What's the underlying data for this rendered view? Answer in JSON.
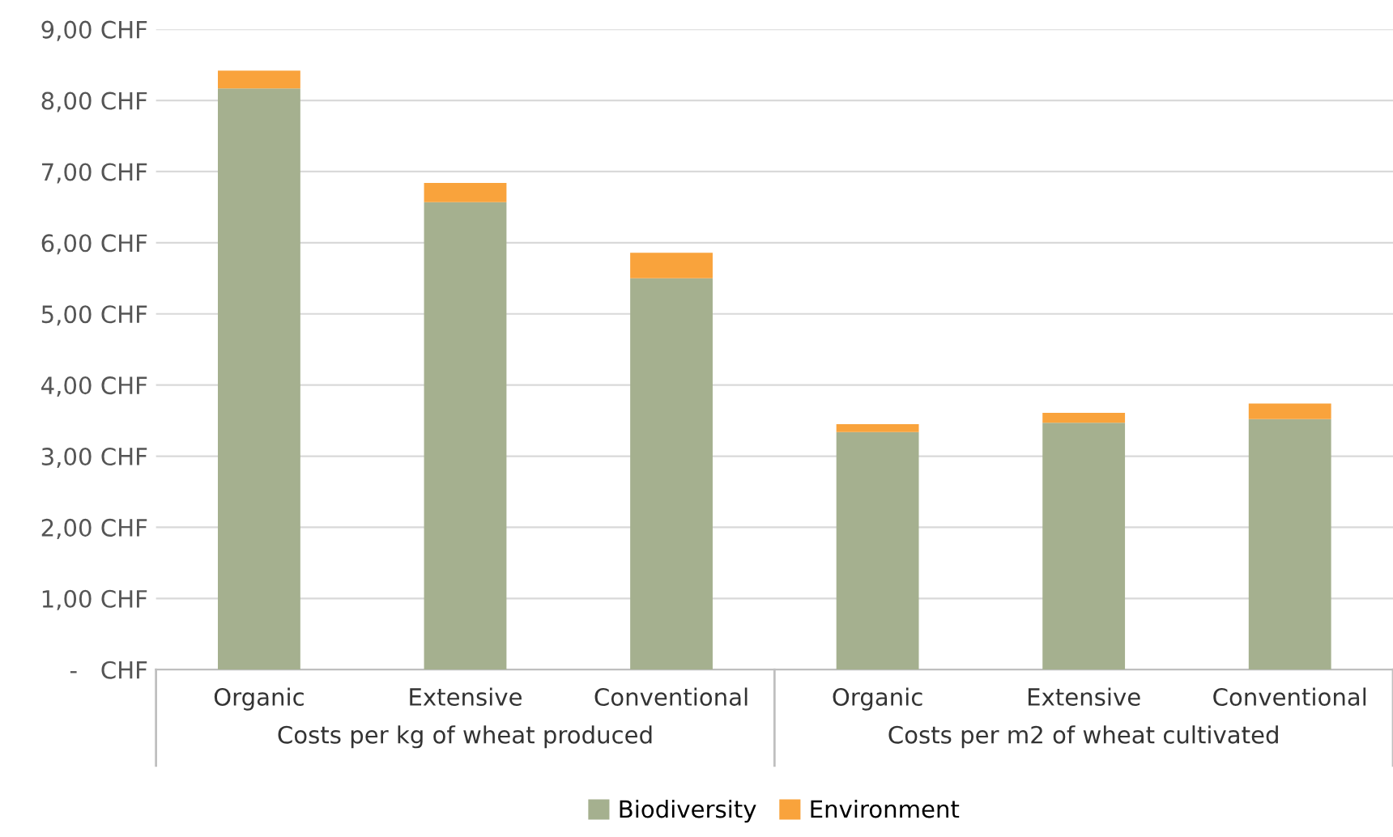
{
  "chart_data": {
    "type": "bar",
    "stacked": true,
    "categories": [
      "Organic",
      "Extensive",
      "Conventional",
      "Organic",
      "Extensive",
      "Conventional"
    ],
    "series": [
      {
        "name": "Biodiversity",
        "color": "#a5b08f",
        "values": [
          8.17,
          6.57,
          5.5,
          3.34,
          3.47,
          3.52
        ]
      },
      {
        "name": "Environment",
        "color": "#f9a33c",
        "values": [
          0.25,
          0.27,
          0.36,
          0.11,
          0.14,
          0.22
        ]
      }
    ],
    "annotations": [
      "Costs per kg of wheat produced",
      "Costs per m2 of wheat cultivated"
    ],
    "ylim": [
      0,
      9
    ],
    "yticks": [
      {
        "value": 0,
        "label": "-   CHF"
      },
      {
        "value": 1,
        "label": "1,00 CHF"
      },
      {
        "value": 2,
        "label": "2,00 CHF"
      },
      {
        "value": 3,
        "label": "3,00 CHF"
      },
      {
        "value": 4,
        "label": "4,00 CHF"
      },
      {
        "value": 5,
        "label": "5,00 CHF"
      },
      {
        "value": 6,
        "label": "6,00 CHF"
      },
      {
        "value": 7,
        "label": "7,00 CHF"
      },
      {
        "value": 8,
        "label": "8,00 CHF"
      },
      {
        "value": 9,
        "label": "9,00 CHF"
      }
    ],
    "grid": "y",
    "legend": "bottom"
  }
}
